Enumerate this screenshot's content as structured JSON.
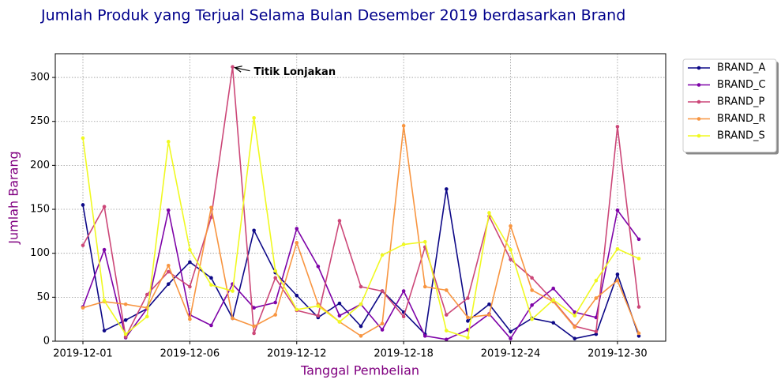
{
  "chart_data": {
    "type": "line",
    "title": "Jumlah Produk yang Terjual Selama Bulan Desember 2019 berdasarkan Brand",
    "xlabel": "Tanggal Pembelian",
    "ylabel": "Jumlah Barang",
    "annotation": "Titik Lonjakan",
    "categories": [
      "2019-12-01",
      null,
      null,
      null,
      null,
      "2019-12-06",
      null,
      null,
      null,
      null,
      "2019-12-12",
      null,
      null,
      null,
      null,
      "2019-12-18",
      null,
      null,
      null,
      null,
      "2019-12-24",
      null,
      null,
      null,
      null,
      "2019-12-30",
      null
    ],
    "series": [
      {
        "name": "BRAND_A",
        "color": "#0d0887",
        "values": [
          155,
          12,
          24,
          37,
          65,
          90,
          72,
          26,
          126,
          78,
          52,
          27,
          43,
          17,
          57,
          33,
          8,
          173,
          23,
          42,
          11,
          26,
          21,
          3,
          8,
          76,
          6
        ]
      },
      {
        "name": "BRAND_C",
        "color": "#7e03a8",
        "values": [
          39,
          104,
          4,
          37,
          149,
          30,
          18,
          65,
          38,
          44,
          128,
          85,
          29,
          42,
          13,
          57,
          6,
          2,
          13,
          31,
          3,
          41,
          60,
          33,
          27,
          149,
          116
        ]
      },
      {
        "name": "BRAND_P",
        "color": "#cc4778",
        "values": [
          109,
          153,
          5,
          53,
          79,
          62,
          141,
          312,
          9,
          72,
          35,
          29,
          137,
          62,
          57,
          28,
          107,
          30,
          49,
          142,
          93,
          72,
          46,
          17,
          11,
          244,
          39
        ]
      },
      {
        "name": "BRAND_R",
        "color": "#f89540",
        "values": [
          38,
          45,
          42,
          38,
          86,
          25,
          152,
          26,
          17,
          30,
          112,
          42,
          22,
          6,
          20,
          245,
          62,
          58,
          27,
          30,
          131,
          58,
          45,
          16,
          49,
          69,
          9
        ]
      },
      {
        "name": "BRAND_S",
        "color": "#f0f921",
        "values": [
          231,
          46,
          8,
          28,
          227,
          104,
          64,
          57,
          254,
          80,
          36,
          40,
          22,
          42,
          98,
          110,
          113,
          12,
          4,
          146,
          104,
          25,
          47,
          29,
          69,
          105,
          94
        ]
      }
    ],
    "ylim": [
      0,
      327
    ],
    "yticks": [
      0,
      50,
      100,
      150,
      200,
      250,
      300
    ],
    "grid": true,
    "legend": "outside-upper-right"
  }
}
